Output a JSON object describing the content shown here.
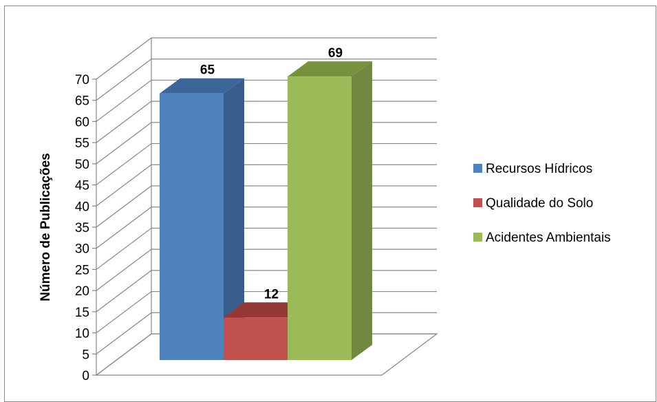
{
  "chart_data": {
    "type": "bar",
    "title": "",
    "ylabel": "Número de Publicações",
    "xlabel": "",
    "ylim": [
      0,
      70
    ],
    "ytick_step": 5,
    "grid": true,
    "three_d": true,
    "legend_position": "right",
    "series": [
      {
        "name": "Recursos Hídricos",
        "value": 65,
        "color": "#4F81BD",
        "side": "#385D8A",
        "top": "#3B6699"
      },
      {
        "name": "Qualidade do Solo",
        "value": 12,
        "color": "#C0504D",
        "side": "#8C3836",
        "top": "#953735"
      },
      {
        "name": "Acidentes Ambientais",
        "value": 69,
        "color": "#9BBB59",
        "side": "#71893F",
        "top": "#76923C"
      }
    ]
  }
}
